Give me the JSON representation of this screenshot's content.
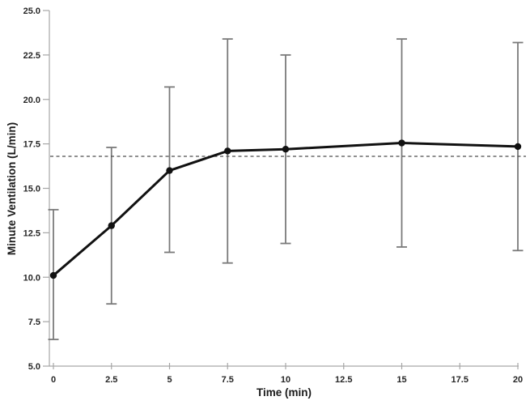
{
  "chart_data": {
    "type": "line",
    "title": "",
    "xlabel": "Time (min)",
    "ylabel": "Minute Ventilation (L/min)",
    "x": [
      0,
      2.5,
      5,
      7.5,
      10,
      15,
      20
    ],
    "series": [
      {
        "name": "Minute Ventilation",
        "values": [
          10.1,
          12.9,
          16.0,
          17.1,
          17.2,
          17.55,
          17.35
        ],
        "error_upper": [
          13.8,
          17.3,
          20.7,
          23.4,
          22.5,
          23.4,
          23.2
        ],
        "error_lower": [
          6.5,
          8.5,
          11.4,
          10.8,
          11.9,
          11.7,
          11.5
        ]
      }
    ],
    "reference_line": {
      "y": 16.8,
      "style": "dashed"
    },
    "xlim": [
      0,
      20
    ],
    "ylim": [
      5,
      25
    ],
    "x_ticks": [
      0,
      2.5,
      5,
      7.5,
      10,
      12.5,
      15,
      17.5,
      20
    ],
    "x_tick_labels": [
      "0",
      "2.5",
      "5",
      "7.5",
      "10",
      "12.5",
      "15",
      "17.5",
      "20"
    ],
    "y_ticks": [
      5,
      7.5,
      10,
      12.5,
      15,
      17.5,
      20,
      22.5,
      25
    ],
    "y_tick_labels": [
      "5.0",
      "7.5",
      "10.0",
      "12.5",
      "15.0",
      "17.5",
      "20.0",
      "22.5",
      "25.0"
    ],
    "grid": false,
    "legend": false,
    "marker_shape": "filled-circle",
    "colors": {
      "line": "#111111",
      "marker": "#111111",
      "error_bar": "#7a7a7a",
      "axis": "#a6a6a6",
      "reference_line": "#4d4d4d",
      "text": "#262626",
      "background": "#ffffff"
    }
  }
}
